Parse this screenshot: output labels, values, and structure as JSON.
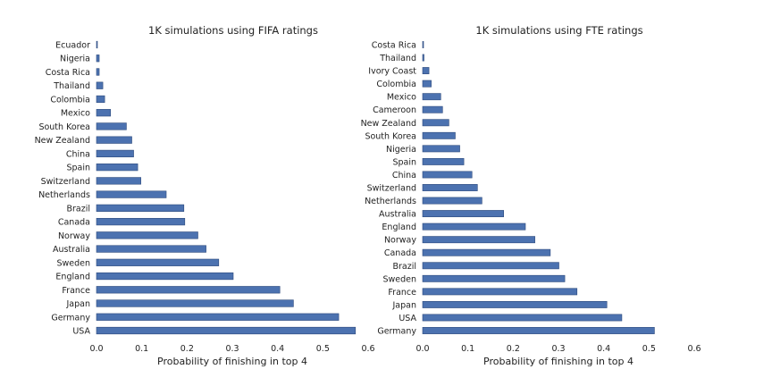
{
  "colors": {
    "bar": "#4c72b0",
    "bar_edge": "#2d4a7c",
    "text": "#222222",
    "background": "#ffffff"
  },
  "chart_data": [
    {
      "type": "bar",
      "orientation": "horizontal",
      "title": "1K simulations using FIFA ratings",
      "xlabel": "Probability of finishing in top 4",
      "ylabel": "",
      "xlim": [
        0,
        0.6
      ],
      "xticks": [
        "0.0",
        "0.1",
        "0.2",
        "0.3",
        "0.4",
        "0.5",
        "0.6"
      ],
      "grid": false,
      "legend": "none",
      "categories": [
        "Ecuador",
        "Nigeria",
        "Costa Rica",
        "Thailand",
        "Colombia",
        "Mexico",
        "South Korea",
        "New Zealand",
        "China",
        "Spain",
        "Switzerland",
        "Netherlands",
        "Brazil",
        "Canada",
        "Norway",
        "Australia",
        "Sweden",
        "England",
        "France",
        "Japan",
        "Germany",
        "USA"
      ],
      "values": [
        0.002,
        0.006,
        0.006,
        0.014,
        0.018,
        0.031,
        0.066,
        0.078,
        0.082,
        0.091,
        0.098,
        0.154,
        0.193,
        0.195,
        0.224,
        0.242,
        0.27,
        0.302,
        0.405,
        0.435,
        0.535,
        0.572
      ]
    },
    {
      "type": "bar",
      "orientation": "horizontal",
      "title": "1K simulations using FTE ratings",
      "xlabel": "Probability of finishing in top 4",
      "ylabel": "",
      "xlim": [
        0,
        0.6
      ],
      "xticks": [
        "0.0",
        "0.1",
        "0.2",
        "0.3",
        "0.4",
        "0.5",
        "0.6"
      ],
      "grid": false,
      "legend": "none",
      "categories": [
        "Costa Rica",
        "Thailand",
        "Ivory Coast",
        "Colombia",
        "Mexico",
        "Cameroon",
        "New Zealand",
        "South Korea",
        "Nigeria",
        "Spain",
        "China",
        "Switzerland",
        "Netherlands",
        "Australia",
        "England",
        "Norway",
        "Canada",
        "Brazil",
        "Sweden",
        "France",
        "Japan",
        "USA",
        "Germany"
      ],
      "values": [
        0.002,
        0.003,
        0.014,
        0.019,
        0.04,
        0.044,
        0.058,
        0.072,
        0.082,
        0.091,
        0.109,
        0.121,
        0.131,
        0.179,
        0.227,
        0.248,
        0.282,
        0.301,
        0.314,
        0.341,
        0.407,
        0.44,
        0.512
      ]
    }
  ]
}
